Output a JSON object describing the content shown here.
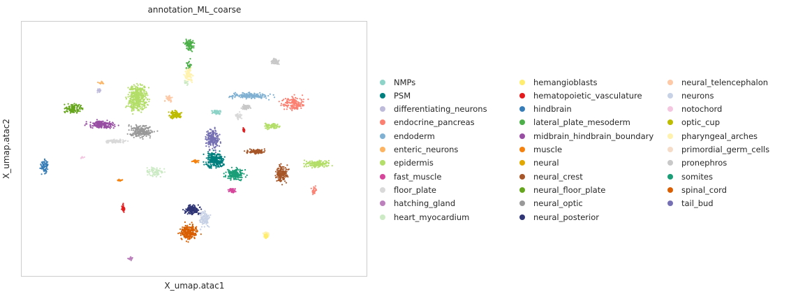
{
  "chart_data": {
    "type": "scatter",
    "title": "annotation_ML_coarse",
    "xlabel": "X_umap.atac1",
    "ylabel": "X_umap.atac2",
    "grid": false,
    "legend_placement": "right",
    "legend_columns": 3,
    "categories": [
      {
        "name": "NMPs",
        "color": "#8dd3c7"
      },
      {
        "name": "PSM",
        "color": "#007f7f"
      },
      {
        "name": "differentiating_neurons",
        "color": "#bebada"
      },
      {
        "name": "endocrine_pancreas",
        "color": "#fb8072"
      },
      {
        "name": "endoderm",
        "color": "#80b1d3"
      },
      {
        "name": "enteric_neurons",
        "color": "#fdb462"
      },
      {
        "name": "epidermis",
        "color": "#b3de69"
      },
      {
        "name": "fast_muscle",
        "color": "#d6479b"
      },
      {
        "name": "floor_plate",
        "color": "#d9d9d9"
      },
      {
        "name": "hatching_gland",
        "color": "#bc80bd"
      },
      {
        "name": "heart_myocardium",
        "color": "#ccebc5"
      },
      {
        "name": "hemangioblasts",
        "color": "#ffed6f"
      },
      {
        "name": "hematopoietic_vasculature",
        "color": "#e41a1c"
      },
      {
        "name": "hindbrain",
        "color": "#377eb8"
      },
      {
        "name": "lateral_plate_mesoderm",
        "color": "#4daf4a"
      },
      {
        "name": "midbrain_hindbrain_boundary",
        "color": "#984ea3"
      },
      {
        "name": "muscle",
        "color": "#f5820f"
      },
      {
        "name": "neural",
        "color": "#e0a800"
      },
      {
        "name": "neural_crest",
        "color": "#a65628"
      },
      {
        "name": "neural_floor_plate",
        "color": "#66a61e"
      },
      {
        "name": "neural_optic",
        "color": "#999999"
      },
      {
        "name": "neural_posterior",
        "color": "#2f3575"
      },
      {
        "name": "neural_telencephalon",
        "color": "#fdc9a6"
      },
      {
        "name": "neurons",
        "color": "#c8d2e6"
      },
      {
        "name": "notochord",
        "color": "#f4c6e0"
      },
      {
        "name": "optic_cup",
        "color": "#bebc00"
      },
      {
        "name": "pharyngeal_arches",
        "color": "#fff2ae"
      },
      {
        "name": "primordial_germ_cells",
        "color": "#f5dcc8"
      },
      {
        "name": "pronephros",
        "color": "#c8c8c8"
      },
      {
        "name": "somites",
        "color": "#1b9e77"
      },
      {
        "name": "spinal_cord",
        "color": "#d95f02"
      },
      {
        "name": "tail_bud",
        "color": "#7570b3"
      }
    ],
    "xlim": [
      0,
      100
    ],
    "ylim": [
      0,
      100
    ],
    "clusters": [
      {
        "cat": "lateral_plate_mesoderm",
        "cx": 48.6,
        "cy": 91.0,
        "rx": 1.8,
        "ry": 2.8,
        "n": 90
      },
      {
        "cat": "lateral_plate_mesoderm",
        "cx": 48.6,
        "cy": 83.0,
        "rx": 1.0,
        "ry": 3.0,
        "n": 25
      },
      {
        "cat": "pharyngeal_arches",
        "cx": 48.5,
        "cy": 79.0,
        "rx": 1.6,
        "ry": 3.5,
        "n": 80
      },
      {
        "cat": "heart_myocardium",
        "cx": 47.8,
        "cy": 76.0,
        "rx": 1.0,
        "ry": 1.0,
        "n": 12
      },
      {
        "cat": "pronephros",
        "cx": 73.5,
        "cy": 84.5,
        "rx": 1.6,
        "ry": 1.5,
        "n": 60
      },
      {
        "cat": "epidermis",
        "cx": 33.5,
        "cy": 70.0,
        "rx": 3.8,
        "ry": 7.5,
        "n": 420
      },
      {
        "cat": "neural_telencephalon",
        "cx": 42.5,
        "cy": 70.0,
        "rx": 1.6,
        "ry": 1.6,
        "n": 40
      },
      {
        "cat": "enteric_neurons",
        "cx": 23.0,
        "cy": 76.0,
        "rx": 1.5,
        "ry": 0.6,
        "n": 14
      },
      {
        "cat": "differentiating_neurons",
        "cx": 22.5,
        "cy": 73.0,
        "rx": 1.0,
        "ry": 0.8,
        "n": 15
      },
      {
        "cat": "neural_floor_plate",
        "cx": 15.0,
        "cy": 66.0,
        "rx": 3.5,
        "ry": 2.5,
        "n": 120
      },
      {
        "cat": "midbrain_hindbrain_boundary",
        "cx": 23.0,
        "cy": 59.5,
        "rx": 5.0,
        "ry": 2.0,
        "n": 180
      },
      {
        "cat": "neural_optic",
        "cx": 34.5,
        "cy": 57.0,
        "rx": 5.0,
        "ry": 3.5,
        "n": 200
      },
      {
        "cat": "floor_plate",
        "cx": 27.0,
        "cy": 53.0,
        "rx": 4.0,
        "ry": 1.0,
        "n": 90
      },
      {
        "cat": "optic_cup",
        "cx": 44.5,
        "cy": 63.5,
        "rx": 2.6,
        "ry": 2.0,
        "n": 110
      },
      {
        "cat": "NMPs",
        "cx": 56.5,
        "cy": 64.5,
        "rx": 1.8,
        "ry": 1.2,
        "n": 60
      },
      {
        "cat": "endoderm",
        "cx": 66.0,
        "cy": 71.0,
        "rx": 7.0,
        "ry": 1.5,
        "n": 160
      },
      {
        "cat": "endocrine_pancreas",
        "cx": 79.0,
        "cy": 68.0,
        "rx": 4.5,
        "ry": 3.5,
        "n": 150
      },
      {
        "cat": "pronephros",
        "cx": 65.0,
        "cy": 66.5,
        "rx": 1.8,
        "ry": 1.5,
        "n": 60
      },
      {
        "cat": "floor_plate",
        "cx": 63.0,
        "cy": 63.0,
        "rx": 1.3,
        "ry": 2.0,
        "n": 40
      },
      {
        "cat": "epidermis",
        "cx": 72.5,
        "cy": 59.0,
        "rx": 2.8,
        "ry": 1.5,
        "n": 70
      },
      {
        "cat": "hematopoietic_vasculature",
        "cx": 64.5,
        "cy": 57.5,
        "rx": 0.5,
        "ry": 1.3,
        "n": 20
      },
      {
        "cat": "tail_bud",
        "cx": 55.5,
        "cy": 54.0,
        "rx": 2.6,
        "ry": 5.5,
        "n": 200
      },
      {
        "cat": "PSM",
        "cx": 56.0,
        "cy": 45.5,
        "rx": 3.5,
        "ry": 4.0,
        "n": 260
      },
      {
        "cat": "somites",
        "cx": 62.0,
        "cy": 40.0,
        "rx": 3.5,
        "ry": 3.0,
        "n": 170
      },
      {
        "cat": "fast_muscle",
        "cx": 61.0,
        "cy": 33.5,
        "rx": 1.5,
        "ry": 1.3,
        "n": 40
      },
      {
        "cat": "neural_crest",
        "cx": 68.0,
        "cy": 49.0,
        "rx": 4.5,
        "ry": 1.2,
        "n": 90
      },
      {
        "cat": "neural_crest",
        "cx": 75.5,
        "cy": 40.0,
        "rx": 2.2,
        "ry": 4.5,
        "n": 170
      },
      {
        "cat": "epidermis",
        "cx": 86.0,
        "cy": 44.0,
        "rx": 5.0,
        "ry": 1.8,
        "n": 140
      },
      {
        "cat": "endocrine_pancreas",
        "cx": 85.0,
        "cy": 33.5,
        "rx": 1.0,
        "ry": 2.0,
        "n": 25
      },
      {
        "cat": "muscle",
        "cx": 50.5,
        "cy": 45.0,
        "rx": 1.5,
        "ry": 1.0,
        "n": 25
      },
      {
        "cat": "heart_myocardium",
        "cx": 38.5,
        "cy": 41.0,
        "rx": 3.5,
        "ry": 2.5,
        "n": 80
      },
      {
        "cat": "muscle",
        "cx": 28.5,
        "cy": 37.5,
        "rx": 1.3,
        "ry": 0.6,
        "n": 12
      },
      {
        "cat": "hindbrain",
        "cx": 6.5,
        "cy": 43.0,
        "rx": 1.5,
        "ry": 4.0,
        "n": 70
      },
      {
        "cat": "hematopoietic_vasculature",
        "cx": 29.5,
        "cy": 26.5,
        "rx": 0.7,
        "ry": 2.5,
        "n": 30
      },
      {
        "cat": "neural_posterior",
        "cx": 49.5,
        "cy": 26.0,
        "rx": 3.0,
        "ry": 2.5,
        "n": 150
      },
      {
        "cat": "neurons",
        "cx": 53.0,
        "cy": 22.0,
        "rx": 2.0,
        "ry": 4.5,
        "n": 110
      },
      {
        "cat": "spinal_cord",
        "cx": 48.5,
        "cy": 17.0,
        "rx": 3.5,
        "ry": 4.0,
        "n": 220
      },
      {
        "cat": "pharyngeal_arches",
        "cx": 71.0,
        "cy": 16.0,
        "rx": 1.2,
        "ry": 1.8,
        "n": 60
      },
      {
        "cat": "hemangioblasts",
        "cx": 71.0,
        "cy": 15.5,
        "rx": 0.8,
        "ry": 1.2,
        "n": 30
      },
      {
        "cat": "hatching_gland",
        "cx": 31.5,
        "cy": 6.5,
        "rx": 1.2,
        "ry": 1.0,
        "n": 20
      },
      {
        "cat": "notochord",
        "cx": 17.5,
        "cy": 46.5,
        "rx": 0.8,
        "ry": 0.6,
        "n": 8
      }
    ]
  }
}
